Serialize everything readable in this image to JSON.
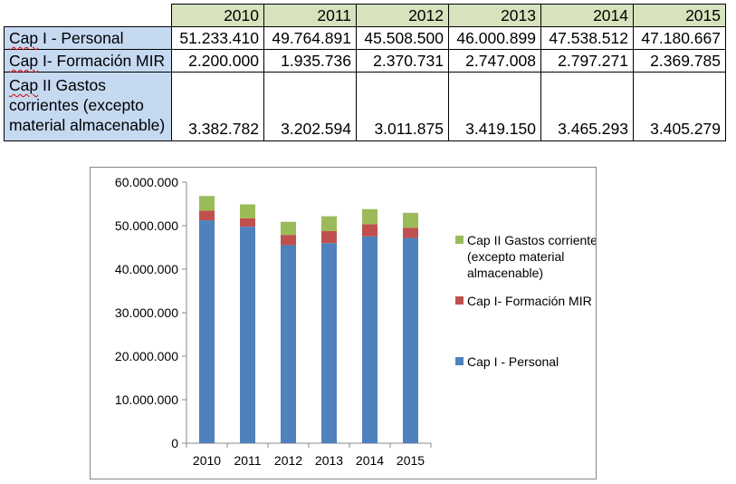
{
  "table": {
    "years": [
      "2010",
      "2011",
      "2012",
      "2013",
      "2014",
      "2015"
    ],
    "rows": [
      {
        "label": "Cap I - Personal",
        "values": [
          "51.233.410",
          "49.764.891",
          "45.508.500",
          "46.000.899",
          "47.538.512",
          "47.180.667"
        ]
      },
      {
        "label": "Cap I- Formación MIR",
        "values": [
          "2.200.000",
          "1.935.736",
          "2.370.731",
          "2.747.008",
          "2.797.271",
          "2.369.785"
        ]
      },
      {
        "label": "Cap II Gastos corrientes (excepto material almacenable)",
        "values": [
          "3.382.782",
          "3.202.594",
          "3.011.875",
          "3.419.150",
          "3.465.293",
          "3.405.279"
        ]
      }
    ]
  },
  "chart_data": {
    "type": "bar",
    "stacked": true,
    "categories": [
      "2010",
      "2011",
      "2012",
      "2013",
      "2014",
      "2015"
    ],
    "series": [
      {
        "name": "Cap I - Personal",
        "color": "#4f81bd",
        "values": [
          51233410,
          49764891,
          45508500,
          46000899,
          47538512,
          47180667
        ]
      },
      {
        "name": "Cap I- Formación MIR",
        "color": "#c0504d",
        "values": [
          2200000,
          1935736,
          2370731,
          2747008,
          2797271,
          2369785
        ]
      },
      {
        "name": "Cap II Gastos corrientes (excepto material almacenable)",
        "color": "#9bbb59",
        "values": [
          3382782,
          3202594,
          3011875,
          3419150,
          3465293,
          3405279
        ]
      }
    ],
    "legend_lines": [
      [
        "Cap II Gastos corrientes",
        "(excepto material",
        "almacenable)"
      ],
      [
        "Cap I- Formación MIR"
      ],
      [
        "Cap I - Personal"
      ]
    ],
    "yticks": [
      0,
      10000000,
      20000000,
      30000000,
      40000000,
      50000000,
      60000000
    ],
    "ytick_labels": [
      "0",
      "10.000.000",
      "20.000.000",
      "30.000.000",
      "40.000.000",
      "50.000.000",
      "60.000.000"
    ],
    "ylim": [
      0,
      60000000
    ],
    "grid": false,
    "legend_position": "right"
  }
}
